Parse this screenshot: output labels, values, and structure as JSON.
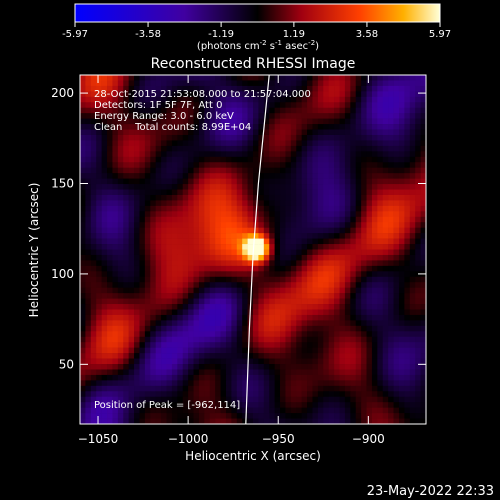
{
  "chart_data": {
    "type": "heatmap",
    "title": "Reconstructed RHESSI Image",
    "xlabel": "Heliocentric X (arcsec)",
    "ylabel": "Heliocentric Y (arcsec)",
    "xlim": [
      -1060,
      -868
    ],
    "ylim": [
      17,
      210
    ],
    "x_ticks": [
      -1050,
      -1000,
      -950,
      -900
    ],
    "y_ticks": [
      50,
      100,
      150,
      200
    ],
    "colorbar": {
      "range": [
        -5.97,
        5.97
      ],
      "ticks": [
        "-5.97",
        "-3.58",
        "-1.19",
        "1.19",
        "3.58",
        "5.97"
      ],
      "units_prefix": "(photons cm",
      "units_sup1": "-2",
      "units_mid": " s",
      "units_sup2": "-1",
      "units_mid2": " asec",
      "units_sup3": "-2",
      "units_suffix": ")"
    },
    "annotations": {
      "time": "28-Oct-2015 21:53:08.000 to 21:57:04.000",
      "detectors": "Detectors: 1F 5F 7F, Att 0",
      "energy": "Energy Range: 3.0 - 6.0 keV",
      "clean": "Clean    Total counts: 8.99E+04",
      "peak": "Position of Peak = [-962,114]"
    },
    "peak": {
      "x": -962,
      "y": 114
    },
    "limb": [
      [
        -968,
        17
      ],
      [
        -966,
        70
      ],
      [
        -964,
        110
      ],
      [
        -961,
        150
      ],
      [
        -957,
        190
      ],
      [
        -955,
        210
      ]
    ],
    "colors": {
      "background": "#000000",
      "text": "#ffffff"
    }
  },
  "footer": {
    "timestamp": "23-May-2022 22:33"
  }
}
